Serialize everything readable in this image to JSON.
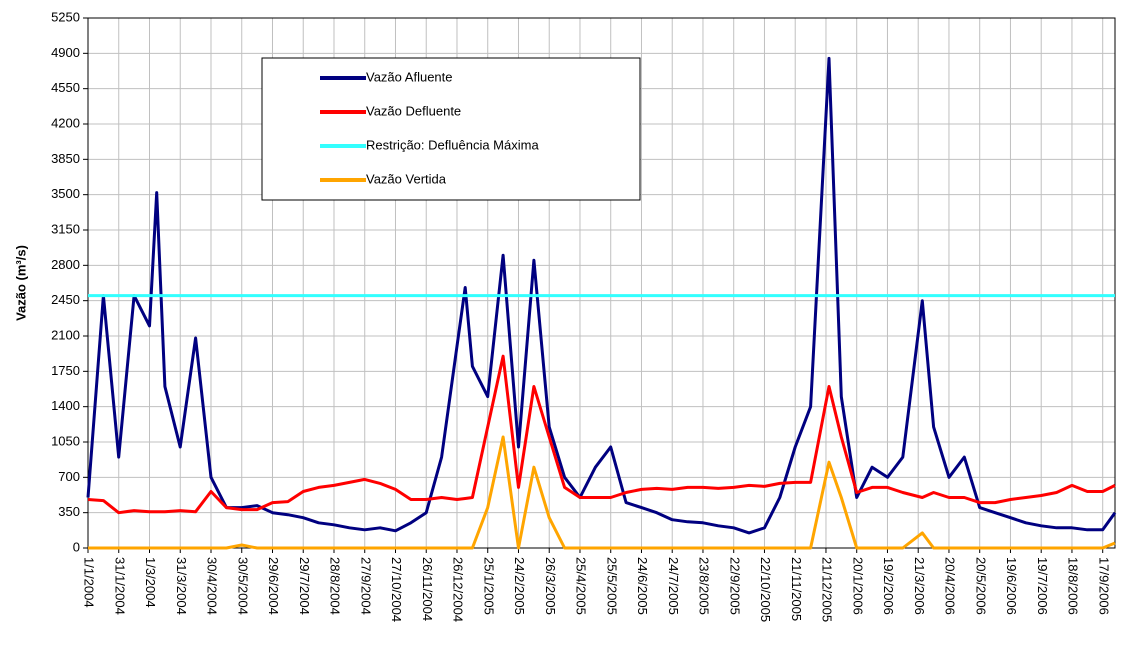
{
  "chart_data": {
    "type": "line",
    "y_label": "Vazão (m³/s)",
    "x": [
      "1/1/2004",
      "16/1/2004",
      "31/1/2004",
      "15/2/2004",
      "1/3/2004",
      "8/3/2004",
      "16/3/2004",
      "31/3/2004",
      "15/4/2004",
      "30/4/2004",
      "15/5/2004",
      "30/5/2004",
      "14/6/2004",
      "29/6/2004",
      "14/7/2004",
      "29/7/2004",
      "13/8/2004",
      "28/8/2004",
      "12/9/2004",
      "27/9/2004",
      "12/10/2004",
      "27/10/2004",
      "11/11/2004",
      "26/11/2004",
      "11/12/2004",
      "26/12/2004",
      "3/1/2005",
      "10/1/2005",
      "25/1/2005",
      "9/2/2005",
      "24/2/2005",
      "11/3/2005",
      "26/3/2005",
      "10/4/2005",
      "25/4/2005",
      "10/5/2005",
      "25/5/2005",
      "9/6/2005",
      "24/6/2005",
      "9/7/2005",
      "24/7/2005",
      "8/8/2005",
      "23/8/2005",
      "7/9/2005",
      "22/9/2005",
      "7/10/2005",
      "22/10/2005",
      "6/11/2005",
      "21/11/2005",
      "6/12/2005",
      "24/12/2005",
      "5/1/2006",
      "20/1/2006",
      "4/2/2006",
      "19/2/2006",
      "6/3/2006",
      "25/3/2006",
      "5/4/2006",
      "20/4/2006",
      "5/5/2006",
      "20/5/2006",
      "4/6/2006",
      "19/6/2006",
      "4/7/2006",
      "19/7/2006",
      "3/8/2006",
      "18/8/2006",
      "2/9/2006",
      "17/9/2006",
      "29/9/2006"
    ],
    "series": [
      {
        "name": "Vazão Afluente",
        "color": "#000080",
        "values": [
          500,
          2500,
          900,
          2500,
          2200,
          3520,
          1600,
          1000,
          2080,
          700,
          400,
          400,
          420,
          350,
          330,
          300,
          250,
          230,
          200,
          180,
          200,
          170,
          250,
          350,
          900,
          2000,
          2580,
          1800,
          1500,
          2900,
          1000,
          2850,
          1200,
          700,
          500,
          800,
          1000,
          450,
          400,
          350,
          280,
          260,
          250,
          220,
          200,
          150,
          200,
          500,
          1000,
          1400,
          4850,
          1500,
          500,
          800,
          700,
          900,
          2450,
          1200,
          700,
          900,
          400,
          350,
          300,
          250,
          220,
          200,
          200,
          180,
          180,
          350
        ]
      },
      {
        "name": "Vazão Defluente",
        "color": "#ff0000",
        "values": [
          480,
          470,
          350,
          370,
          360,
          360,
          360,
          370,
          360,
          560,
          400,
          380,
          380,
          450,
          460,
          560,
          600,
          620,
          650,
          680,
          640,
          580,
          480,
          480,
          500,
          480,
          490,
          500,
          1200,
          1900,
          600,
          1600,
          1100,
          600,
          500,
          500,
          500,
          550,
          580,
          590,
          580,
          600,
          600,
          590,
          600,
          620,
          610,
          640,
          650,
          650,
          1600,
          1100,
          550,
          600,
          600,
          550,
          500,
          550,
          500,
          500,
          450,
          450,
          480,
          500,
          520,
          550,
          620,
          560,
          560,
          620
        ]
      },
      {
        "name": "Restrição: Defluência Máxima",
        "color": "#33ffff",
        "values": [
          2500,
          2500,
          2500,
          2500,
          2500,
          2500,
          2500,
          2500,
          2500,
          2500,
          2500,
          2500,
          2500,
          2500,
          2500,
          2500,
          2500,
          2500,
          2500,
          2500,
          2500,
          2500,
          2500,
          2500,
          2500,
          2500,
          2500,
          2500,
          2500,
          2500,
          2500,
          2500,
          2500,
          2500,
          2500,
          2500,
          2500,
          2500,
          2500,
          2500,
          2500,
          2500,
          2500,
          2500,
          2500,
          2500,
          2500,
          2500,
          2500,
          2500,
          2500,
          2500,
          2500,
          2500,
          2500,
          2500,
          2500,
          2500,
          2500,
          2500,
          2500,
          2500,
          2500,
          2500,
          2500,
          2500,
          2500,
          2500,
          2500,
          2500
        ]
      },
      {
        "name": "Vazão Vertida",
        "color": "#ffa500",
        "values": [
          0,
          0,
          0,
          0,
          0,
          0,
          0,
          0,
          0,
          0,
          0,
          30,
          0,
          0,
          0,
          0,
          0,
          0,
          0,
          0,
          0,
          0,
          0,
          0,
          0,
          0,
          0,
          0,
          400,
          1100,
          0,
          800,
          300,
          0,
          0,
          0,
          0,
          0,
          0,
          0,
          0,
          0,
          0,
          0,
          0,
          0,
          0,
          0,
          0,
          0,
          850,
          500,
          0,
          0,
          0,
          0,
          150,
          0,
          0,
          0,
          0,
          0,
          0,
          0,
          0,
          0,
          0,
          0,
          0,
          50
        ]
      }
    ],
    "xlim": [
      "1/1/2004",
      "29/9/2006"
    ],
    "xticks": [
      "1/1/2004",
      "31/1/2004",
      "1/3/2004",
      "31/3/2004",
      "30/4/2004",
      "30/5/2004",
      "29/6/2004",
      "29/7/2004",
      "28/8/2004",
      "27/9/2004",
      "27/10/2004",
      "26/11/2004",
      "26/12/2004",
      "25/1/2005",
      "24/2/2005",
      "26/3/2005",
      "25/4/2005",
      "25/5/2005",
      "24/6/2005",
      "24/7/2005",
      "23/8/2005",
      "22/9/2005",
      "22/10/2005",
      "21/11/2005",
      "21/12/2005",
      "20/1/2006",
      "19/2/2006",
      "21/3/2006",
      "20/4/2006",
      "20/5/2006",
      "19/6/2006",
      "19/7/2006",
      "18/8/2006",
      "17/9/2006"
    ],
    "ylim": [
      0,
      5250
    ],
    "yticks": [
      0,
      350,
      700,
      1050,
      1400,
      1750,
      2100,
      2450,
      2800,
      3150,
      3500,
      3850,
      4200,
      4550,
      4900,
      5250
    ],
    "grid": true,
    "legend": "upper-left"
  }
}
